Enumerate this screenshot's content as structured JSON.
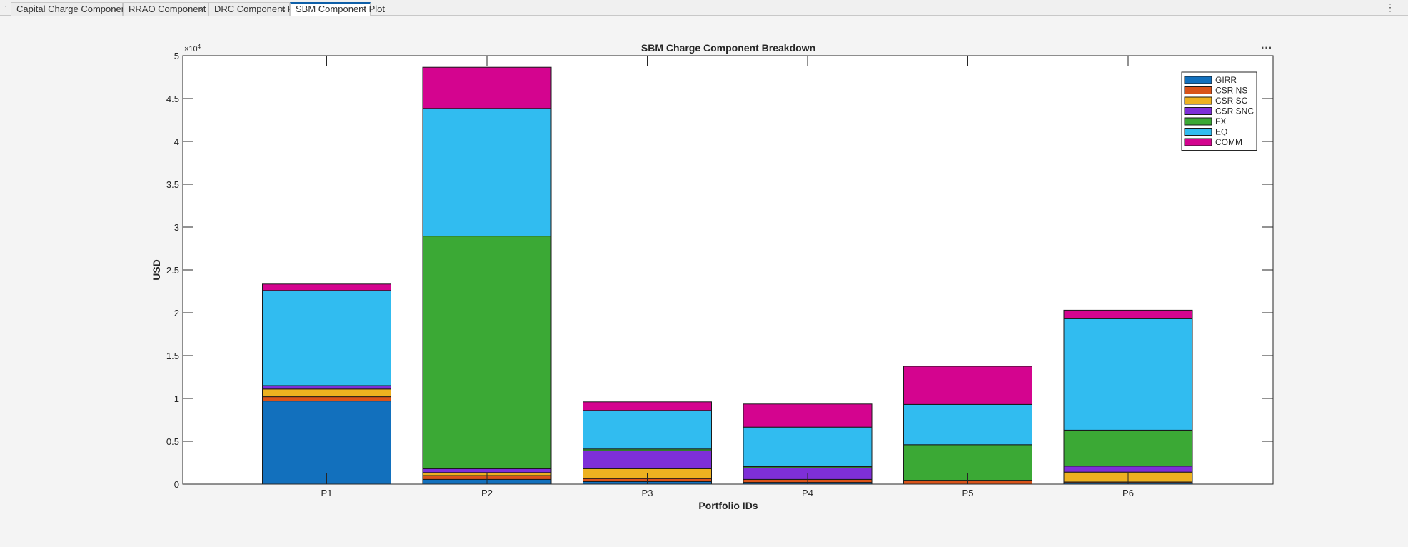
{
  "tabs": [
    {
      "label": "Capital Charge Component Plot",
      "active": false
    },
    {
      "label": "RRAO Component Plot",
      "active": false
    },
    {
      "label": "DRC Component Plot",
      "active": false
    },
    {
      "label": "SBM Component Plot",
      "active": true
    }
  ],
  "axes_menu_glyph": "···",
  "window_menu_glyph": "⋮",
  "close_glyph": "×",
  "chart_data": {
    "type": "bar",
    "stacked": true,
    "title": "SBM Charge Component Breakdown",
    "xlabel": "Portfolio IDs",
    "ylabel": "USD",
    "y_exponent_label": "×10",
    "y_exponent": "4",
    "categories": [
      "P1",
      "P2",
      "P3",
      "P4",
      "P5",
      "P6"
    ],
    "ylim": [
      0,
      50000
    ],
    "yticks": [
      0,
      5000,
      10000,
      15000,
      20000,
      25000,
      30000,
      35000,
      40000,
      45000,
      50000
    ],
    "ytick_labels": [
      "0",
      "0.5",
      "1",
      "1.5",
      "2",
      "2.5",
      "3",
      "3.5",
      "4",
      "4.5",
      "5"
    ],
    "legend_position": "top-right",
    "grid": false,
    "series": [
      {
        "name": "GIRR",
        "color": "#1270bd",
        "values": [
          9700,
          550,
          300,
          200,
          0,
          150
        ]
      },
      {
        "name": "CSR NS",
        "color": "#d95319",
        "values": [
          500,
          450,
          350,
          350,
          450,
          100
        ]
      },
      {
        "name": "CSR SC",
        "color": "#edb120",
        "values": [
          900,
          350,
          1150,
          0,
          0,
          1150
        ]
      },
      {
        "name": "CSR SNC",
        "color": "#7e2fd8",
        "values": [
          400,
          450,
          2100,
          1350,
          0,
          700
        ]
      },
      {
        "name": "FX",
        "color": "#3ba935",
        "values": [
          0,
          27150,
          200,
          150,
          4150,
          4200
        ]
      },
      {
        "name": "EQ",
        "color": "#31bcf0",
        "values": [
          11100,
          14900,
          4500,
          4600,
          4700,
          13000
        ]
      },
      {
        "name": "COMM",
        "color": "#d4048f",
        "values": [
          750,
          4800,
          1000,
          2700,
          4450,
          1000
        ]
      }
    ]
  }
}
